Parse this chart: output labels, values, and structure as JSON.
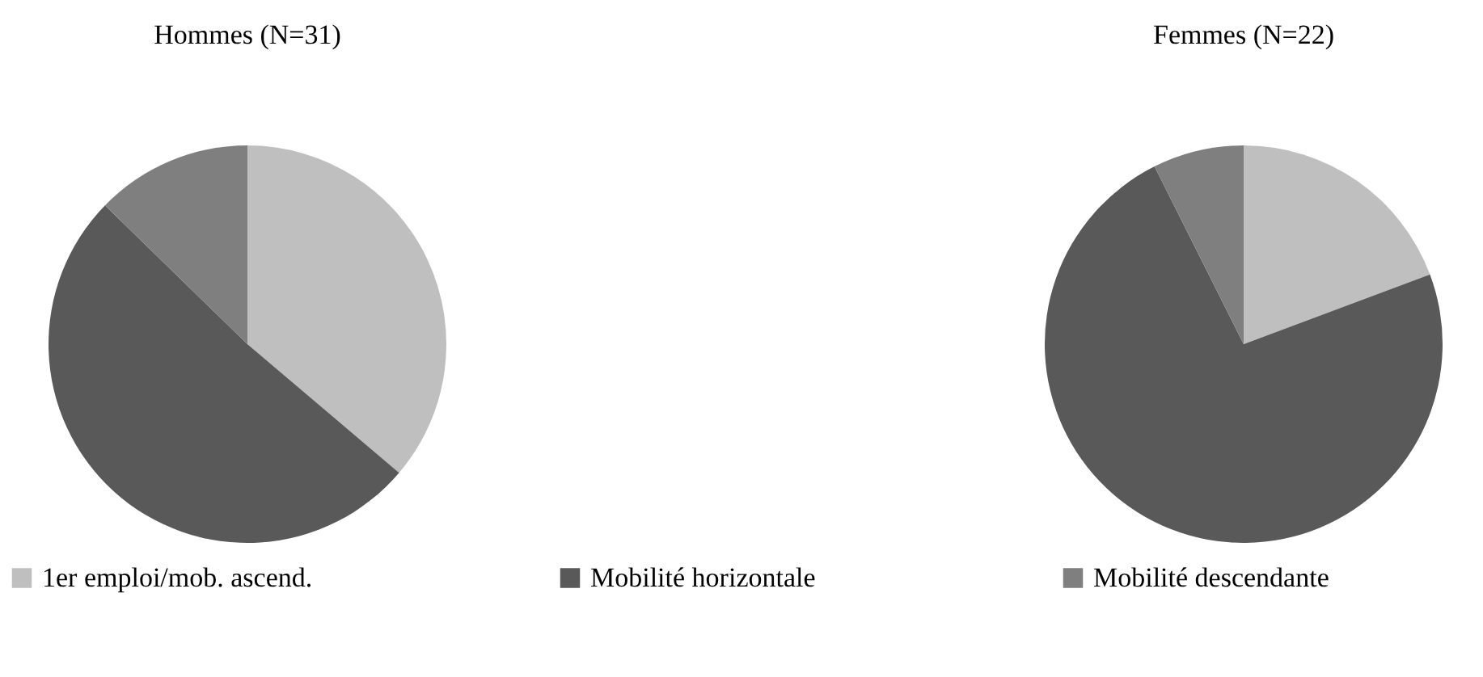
{
  "chart_data": {
    "type": "pie",
    "categories": [
      "1er emploi/mob. ascend.",
      "Mobilité horizontale",
      "Mobilité descendante"
    ],
    "colors": [
      "#bfbfbf",
      "#595959",
      "#7f7f7f"
    ],
    "legend": "bottom",
    "series": [
      {
        "name": "Hommes (N=31)",
        "values": [
          36.2,
          51.1,
          12.7
        ]
      },
      {
        "name": "Femmes (N=22)",
        "values": [
          19.3,
          73.3,
          7.4
        ]
      }
    ]
  }
}
